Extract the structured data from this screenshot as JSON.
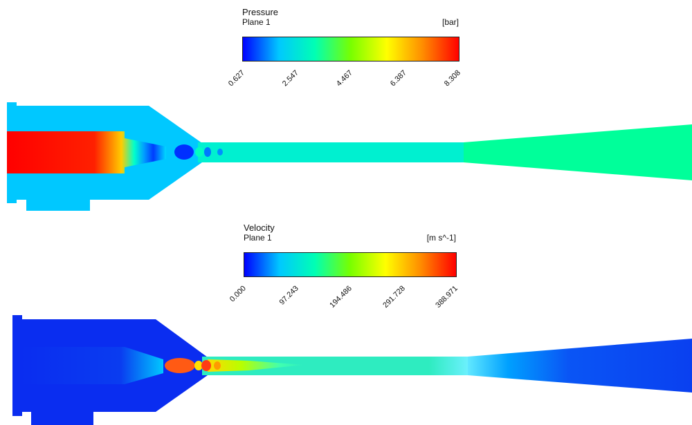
{
  "legends": [
    {
      "variable": "Pressure",
      "location": "Plane 1",
      "unit": "[bar]",
      "ticks": [
        "0.627",
        "2.547",
        "4.467",
        "6.387",
        "8.308"
      ]
    },
    {
      "variable": "Velocity",
      "location": "Plane 1",
      "unit": "[m s^-1]",
      "ticks": [
        "0.000",
        "97.243",
        "194.486",
        "291.728",
        "388.971"
      ]
    }
  ],
  "colormap": [
    "#0000ff",
    "#00c8ff",
    "#00ffb4",
    "#78ff00",
    "#ffff00",
    "#ff8c00",
    "#ff0000"
  ],
  "fluid_colors": {
    "pressure_chamber": "#00c8ff",
    "pressure_core": "#ff0000",
    "pressure_throat": "#00f0d0",
    "pressure_diffuser": "#00ff9a",
    "velocity_chamber": "#0a2df0",
    "velocity_core": "#ff5a14",
    "velocity_throat": "#2eecc0",
    "velocity_diffuser": "#0a55f5"
  }
}
